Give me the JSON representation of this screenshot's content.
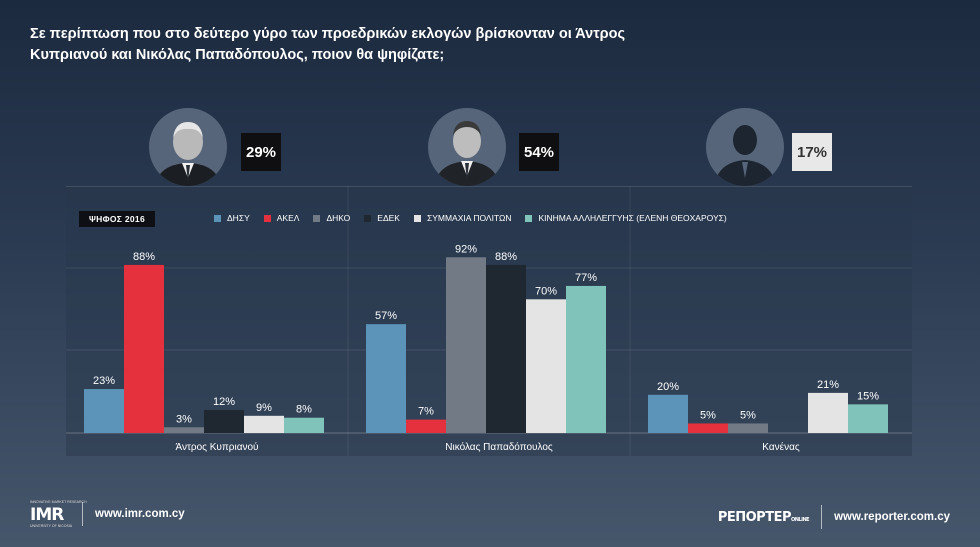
{
  "question": "Σε περίπτωση που στο δεύτερο γύρο των προεδρικών εκλογών βρίσκονταν οι Άντρος Κυπριανού και Νικόλας Παπαδόπουλος, ποιον θα ψηφίζατε;",
  "candidates": [
    {
      "pct": "29%",
      "style": "dark",
      "icon": "candidate-photo"
    },
    {
      "pct": "54%",
      "style": "dark",
      "icon": "candidate-photo"
    },
    {
      "pct": "17%",
      "style": "light",
      "icon": "person-silhouette-icon"
    }
  ],
  "vote_tag": "ΨΗΦΟΣ 2016",
  "colors": {
    "ΔΗΣΥ": "#5b94b8",
    "ΑΚΕΛ": "#e5303d",
    "ΔΗΚΟ": "#727b85",
    "ΕΔΕΚ": "#1f2731",
    "ΣΥΜΜΑΧΙΑ ΠΟΛΙΤΩΝ": "#e4e4e4",
    "ΚΙΝΗΜΑ ΑΛΛΗΛΕΓΓΥΗΣ (ΕΛΕΝΗ ΘΕΟΧΑΡΟΥΣ)": "#7fc3bb"
  },
  "chart_data": {
    "type": "bar",
    "categories": [
      "Άντρος Κυπριανού",
      "Νικόλας Παπαδόπουλος",
      "Κανένας"
    ],
    "series": [
      {
        "name": "ΔΗΣΥ",
        "values": [
          23,
          57,
          20
        ]
      },
      {
        "name": "ΑΚΕΛ",
        "values": [
          88,
          7,
          5
        ]
      },
      {
        "name": "ΔΗΚΟ",
        "values": [
          3,
          92,
          5
        ]
      },
      {
        "name": "ΕΔΕΚ",
        "values": [
          12,
          88,
          null
        ]
      },
      {
        "name": "ΣΥΜΜΑΧΙΑ ΠΟΛΙΤΩΝ",
        "values": [
          9,
          70,
          21
        ]
      },
      {
        "name": "ΚΙΝΗΜΑ ΑΛΛΗΛΕΓΓΥΗΣ (ΕΛΕΝΗ ΘΕΟΧΑΡΟΥΣ)",
        "values": [
          8,
          77,
          15
        ]
      }
    ],
    "value_suffix": "%",
    "ylim": [
      0,
      100
    ],
    "grid": true,
    "legend_position": "top"
  },
  "footer": {
    "imr_small_top": "INNOVATIVE MARKET RESEARCH",
    "imr_logo": "IMR",
    "imr_small_bottom": "UNIVERSITY OF NICOSIA",
    "imr_url": "www.imr.com.cy",
    "reporter_logo": "ΡΕΠΟΡΤΕΡ",
    "reporter_logo_small": "ONLINE",
    "reporter_url": "www.reporter.com.cy"
  }
}
